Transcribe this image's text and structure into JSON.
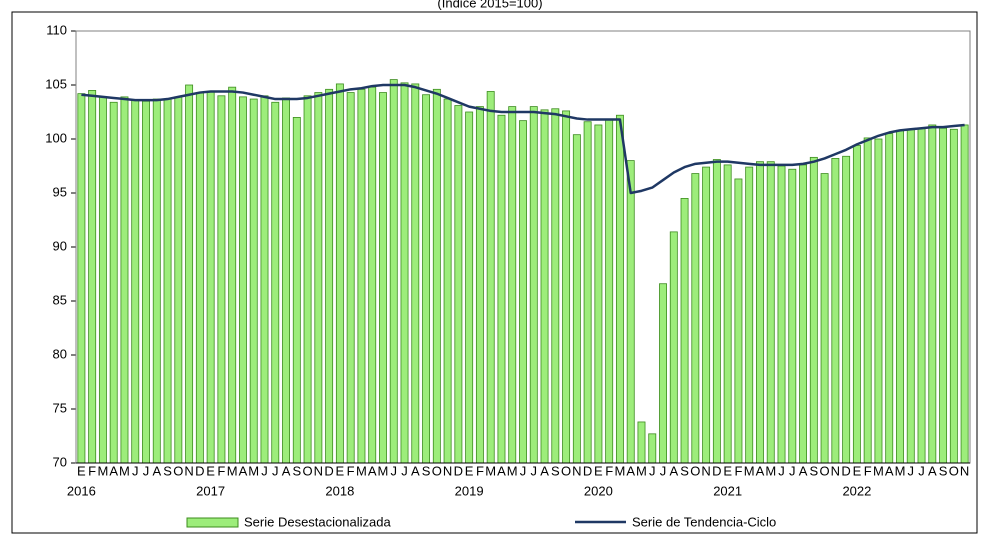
{
  "chart_data": {
    "type": "bar",
    "subtitle": "(Índice 2015=100)",
    "categories": [
      "E",
      "F",
      "M",
      "A",
      "M",
      "J",
      "J",
      "A",
      "S",
      "O",
      "N",
      "D",
      "E",
      "F",
      "M",
      "A",
      "M",
      "J",
      "J",
      "A",
      "S",
      "O",
      "N",
      "D",
      "E",
      "F",
      "M",
      "A",
      "M",
      "J",
      "J",
      "A",
      "S",
      "O",
      "N",
      "D",
      "E",
      "F",
      "M",
      "A",
      "M",
      "J",
      "J",
      "A",
      "S",
      "O",
      "N",
      "D",
      "E",
      "F",
      "M",
      "A",
      "M",
      "J",
      "J",
      "A",
      "S",
      "O",
      "N",
      "D",
      "E",
      "F",
      "M",
      "A",
      "M",
      "J",
      "J",
      "A",
      "S",
      "O",
      "N",
      "D",
      "E",
      "F",
      "M",
      "A",
      "M",
      "J",
      "J",
      "A",
      "S",
      "O",
      "N"
    ],
    "years": [
      "2016",
      "2017",
      "2018",
      "2019",
      "2020",
      "2021",
      "2022"
    ],
    "series": [
      {
        "name": "Serie Desestacionalizada",
        "type": "bar",
        "color": "#9ded7b",
        "stroke": "#3c8c1e",
        "values": [
          104.2,
          104.5,
          103.9,
          103.4,
          103.9,
          103.6,
          103.5,
          103.7,
          103.7,
          103.9,
          105.0,
          104.3,
          104.4,
          104.0,
          104.8,
          103.9,
          103.7,
          104.0,
          103.4,
          103.8,
          102.0,
          104.0,
          104.3,
          104.6,
          105.1,
          104.3,
          104.6,
          104.8,
          104.3,
          105.5,
          105.2,
          105.1,
          104.1,
          104.6,
          103.7,
          103.1,
          102.5,
          103.0,
          104.4,
          102.2,
          103.0,
          101.7,
          103.0,
          102.7,
          102.8,
          102.6,
          100.4,
          101.6,
          101.3,
          101.8,
          102.2,
          98.0,
          73.8,
          72.7,
          86.6,
          91.4,
          94.5,
          96.8,
          97.4,
          98.1,
          97.6,
          96.3,
          97.4,
          97.9,
          97.9,
          97.5,
          97.2,
          97.6,
          98.3,
          96.8,
          98.2,
          98.4,
          99.4,
          100.1,
          100.0,
          100.5,
          100.8,
          100.9,
          101.0,
          101.3,
          101.0,
          100.9,
          101.3
        ]
      },
      {
        "name": "Serie de Tendencia-Ciclo",
        "type": "line",
        "color": "#1f3864",
        "values": [
          104.1,
          104.0,
          103.9,
          103.8,
          103.7,
          103.6,
          103.6,
          103.6,
          103.7,
          103.9,
          104.1,
          104.3,
          104.4,
          104.4,
          104.4,
          104.3,
          104.1,
          103.9,
          103.7,
          103.7,
          103.7,
          103.8,
          104.0,
          104.2,
          104.4,
          104.6,
          104.7,
          104.9,
          105.0,
          105.0,
          105.0,
          104.8,
          104.5,
          104.2,
          103.8,
          103.4,
          103.0,
          102.8,
          102.6,
          102.5,
          102.5,
          102.5,
          102.5,
          102.4,
          102.3,
          102.1,
          101.9,
          101.8,
          101.8,
          101.8,
          101.8,
          95.0,
          95.2,
          95.5,
          96.2,
          96.9,
          97.4,
          97.7,
          97.8,
          97.9,
          97.9,
          97.8,
          97.7,
          97.6,
          97.6,
          97.6,
          97.6,
          97.7,
          97.9,
          98.2,
          98.6,
          99.0,
          99.5,
          99.9,
          100.3,
          100.6,
          100.8,
          100.9,
          101.0,
          101.1,
          101.1,
          101.2,
          101.3
        ]
      }
    ],
    "ylim": [
      70,
      110
    ],
    "yticks": [
      70,
      75,
      80,
      85,
      90,
      95,
      100,
      105,
      110
    ],
    "grid": false,
    "legend": "bottom"
  }
}
